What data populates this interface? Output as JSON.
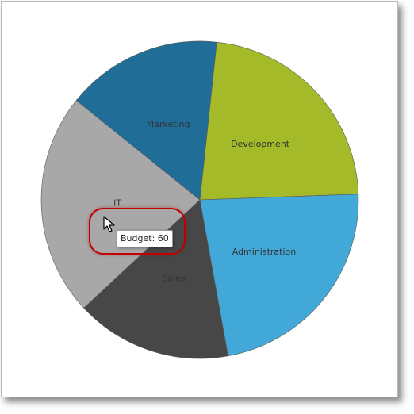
{
  "chart_data": {
    "type": "pie",
    "slices": [
      {
        "label": "Development",
        "value": 100,
        "color": "#A4BA28"
      },
      {
        "label": "Administration",
        "value": 100,
        "color": "#41A8D8"
      },
      {
        "label": "Sales",
        "value": 70,
        "color": "#474747"
      },
      {
        "label": "IT",
        "value": 100,
        "color": "#A8A8A8"
      },
      {
        "label": "Marketing",
        "value": 70,
        "color": "#206E98"
      }
    ]
  },
  "tooltip": {
    "text": "Budget: 60"
  }
}
